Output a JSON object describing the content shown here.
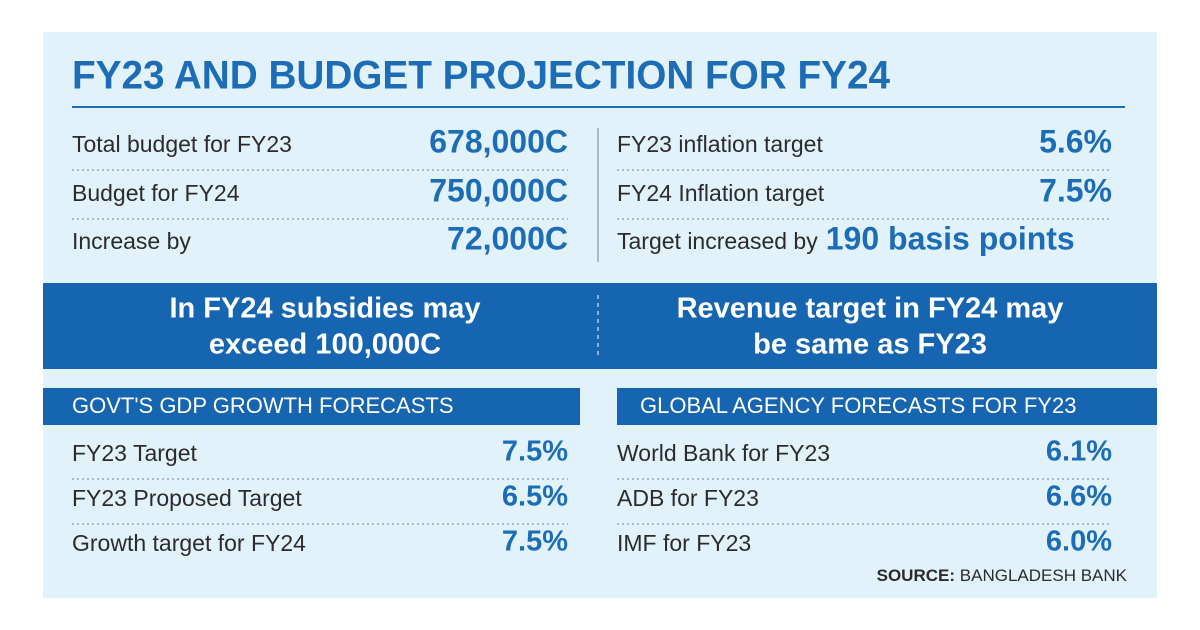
{
  "title": "FY23 AND BUDGET PROJECTION FOR FY24",
  "budget": {
    "rows": [
      {
        "label": "Total budget for FY23",
        "value": "678,000C"
      },
      {
        "label": "Budget for FY24",
        "value": "750,000C"
      },
      {
        "label": "Increase by",
        "value": "72,000C"
      }
    ]
  },
  "inflation": {
    "rows": [
      {
        "label": "FY23 inflation target",
        "value": "5.6%"
      },
      {
        "label": "FY24 Inflation target",
        "value": "7.5%"
      },
      {
        "label": "Target increased by",
        "value": "190 basis points"
      }
    ]
  },
  "banner": {
    "left": [
      "In FY24 subsidies may",
      "exceed 100,000C"
    ],
    "right": [
      "Revenue target in FY24 may",
      "be same as FY23"
    ]
  },
  "gdp": {
    "title": "GOVT'S GDP GROWTH FORECASTS",
    "rows": [
      {
        "label": "FY23 Target",
        "value": "7.5%"
      },
      {
        "label": "FY23 Proposed Target",
        "value": "6.5%"
      },
      {
        "label": "Growth target for FY24",
        "value": "7.5%"
      }
    ]
  },
  "global": {
    "title": "GLOBAL AGENCY FORECASTS FOR FY23",
    "rows": [
      {
        "label": "World Bank for FY23",
        "value": "6.1%"
      },
      {
        "label": "ADB for FY23",
        "value": "6.6%"
      },
      {
        "label": "IMF for FY23",
        "value": "6.0%"
      }
    ]
  },
  "source": {
    "label": "SOURCE:",
    "name": "BANGLADESH BANK"
  }
}
